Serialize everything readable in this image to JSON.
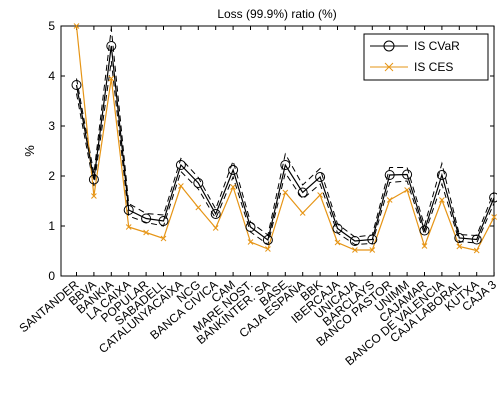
{
  "chart_data": {
    "type": "line",
    "title": "Loss (99.9%) ratio (%)",
    "xlabel": "",
    "ylabel": "%",
    "ylim": [
      0,
      5
    ],
    "yticks": [
      0,
      1,
      2,
      3,
      4,
      5
    ],
    "grid": false,
    "legend_position": "top-right",
    "categories": [
      "SANTANDER",
      "BBVA",
      "BANKIA",
      "LA CAIXA",
      "POPULAR",
      "SABADELL",
      "CATALUNYACAIXA",
      "NCG",
      "BANCA CIVICA",
      "CAM",
      "MARE NOST.",
      "BANKINTER. SA",
      "BASE",
      "CAJA ESPAÑA",
      "BBK",
      "IBERCAJA",
      "UNICAJA",
      "BARCLAYS",
      "BANCO PASTOR",
      "UNIMM",
      "CAJAMAR",
      "BANCO DE VALENCIA",
      "CAJA LABORAL",
      "KUTXA",
      "CAJA 3"
    ],
    "series": [
      {
        "name": "IS CVaR",
        "color": "#000000",
        "marker": "circle",
        "values": [
          3.82,
          1.93,
          4.6,
          1.32,
          1.15,
          1.1,
          2.22,
          1.86,
          1.24,
          2.12,
          0.98,
          0.72,
          2.22,
          1.67,
          1.98,
          0.95,
          0.7,
          0.73,
          2.02,
          2.03,
          0.91,
          2.02,
          0.76,
          0.73,
          1.57
        ]
      },
      {
        "name": "IS CES",
        "color": "#e69516",
        "marker": "x",
        "values": [
          5.0,
          1.6,
          3.95,
          0.98,
          0.87,
          0.75,
          1.8,
          1.37,
          0.96,
          1.78,
          0.68,
          0.54,
          1.67,
          1.26,
          1.62,
          0.67,
          0.52,
          0.52,
          1.52,
          1.72,
          0.6,
          1.52,
          0.59,
          0.51,
          1.18
        ]
      }
    ],
    "confidence_bands": [
      {
        "label": "IS CVaR upper bound",
        "style": "dashed",
        "values": [
          3.95,
          2.05,
          4.95,
          1.45,
          1.25,
          1.22,
          2.35,
          1.97,
          1.34,
          2.3,
          1.08,
          0.82,
          2.44,
          1.82,
          2.15,
          1.04,
          0.78,
          0.82,
          2.17,
          2.17,
          1.01,
          2.25,
          0.83,
          0.81,
          1.69
        ]
      },
      {
        "label": "IS CVaR lower bound",
        "style": "dashed",
        "values": [
          3.65,
          1.8,
          4.3,
          1.2,
          1.07,
          1.0,
          2.09,
          1.74,
          1.15,
          1.98,
          0.88,
          0.63,
          2.06,
          1.54,
          1.84,
          0.86,
          0.63,
          0.65,
          1.87,
          1.9,
          0.83,
          1.84,
          0.69,
          0.66,
          1.46
        ]
      }
    ]
  }
}
